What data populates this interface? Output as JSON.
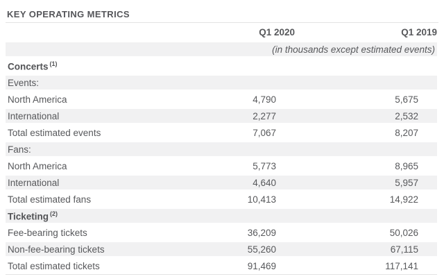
{
  "title": "KEY OPERATING METRICS",
  "table": {
    "columns": {
      "c2020": "Q1 2020",
      "c2019": "Q1 2019"
    },
    "note": "(in thousands except estimated events)",
    "rows": [
      {
        "label": "Concerts",
        "sup": "(1)"
      },
      {
        "label": "Events:"
      },
      {
        "label": "North America",
        "q1_2020": "4,790",
        "q1_2019": "5,675"
      },
      {
        "label": "International",
        "q1_2020": "2,277",
        "q1_2019": "2,532"
      },
      {
        "label": "Total estimated events",
        "q1_2020": "7,067",
        "q1_2019": "8,207"
      },
      {
        "label": "Fans:"
      },
      {
        "label": "North America",
        "q1_2020": "5,773",
        "q1_2019": "8,965"
      },
      {
        "label": "International",
        "q1_2020": "4,640",
        "q1_2019": "5,957"
      },
      {
        "label": "Total estimated fans",
        "q1_2020": "10,413",
        "q1_2019": "14,922"
      },
      {
        "label": "Ticketing",
        "sup": "(2)"
      },
      {
        "label": "Fee-bearing tickets",
        "q1_2020": "36,209",
        "q1_2019": "50,026"
      },
      {
        "label": "Non-fee-bearing tickets",
        "q1_2020": "55,260",
        "q1_2019": "67,115"
      },
      {
        "label": "Total estimated tickets",
        "q1_2020": "91,469",
        "q1_2019": "117,141"
      }
    ],
    "colors": {
      "shaded_row": "#f1f1f2",
      "text": "#57585b",
      "divider": "#e3e3e4"
    }
  }
}
